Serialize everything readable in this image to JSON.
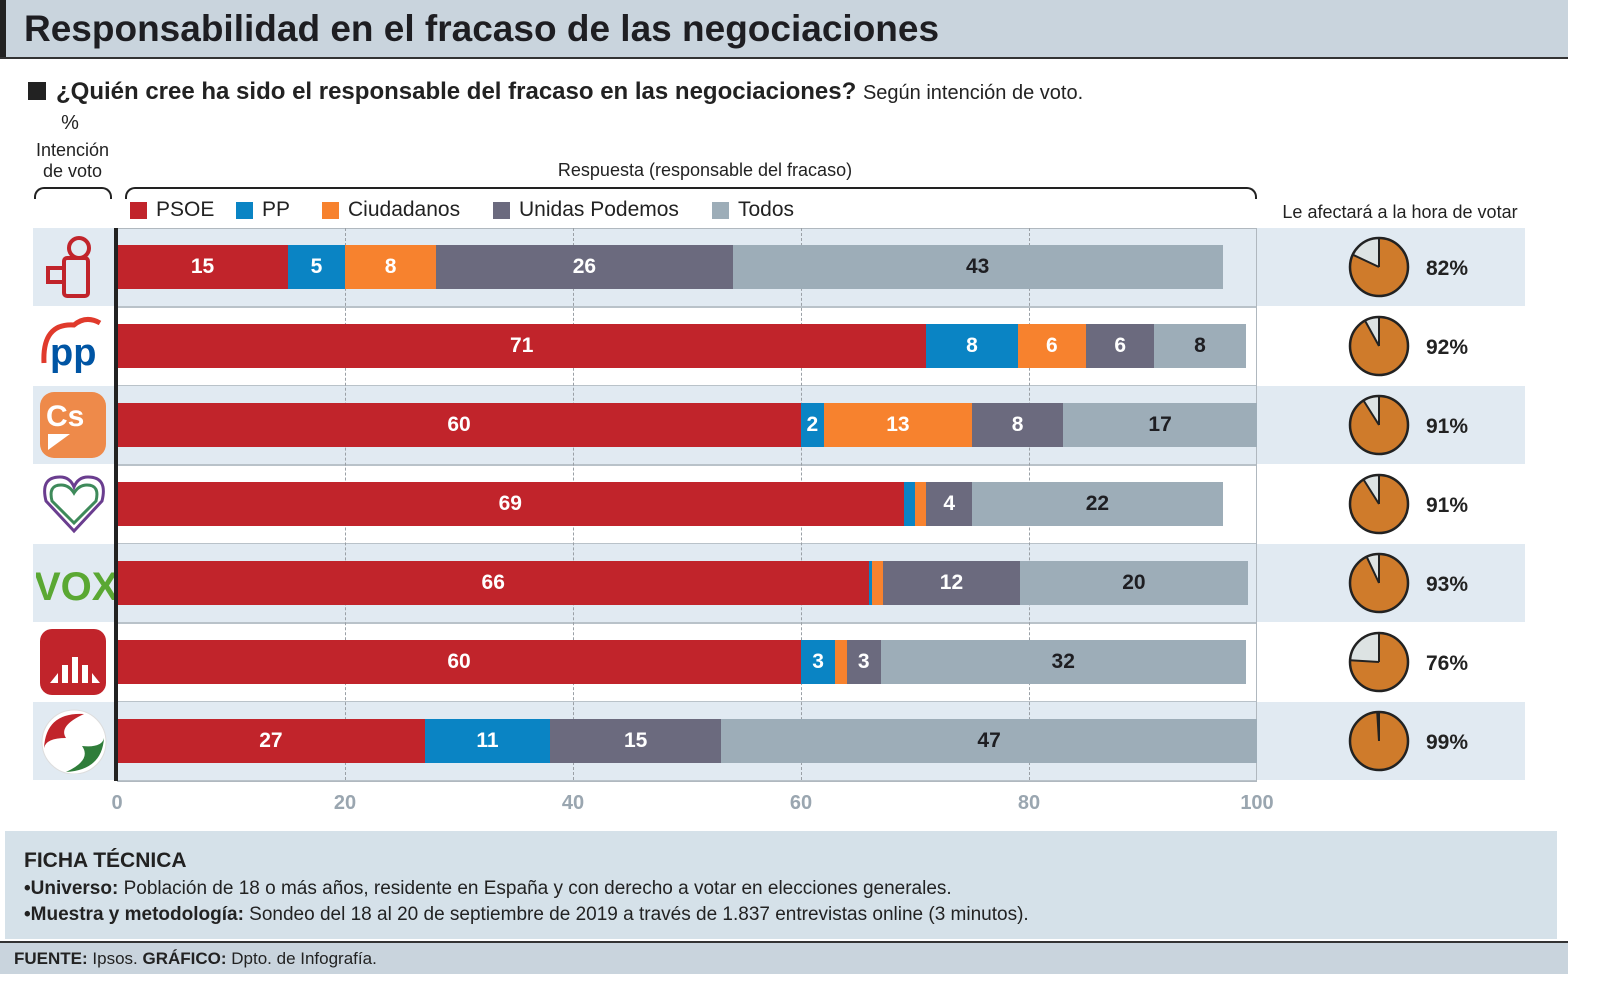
{
  "title": "Responsabilidad en el fracaso de las negociaciones",
  "question": "¿Quién cree ha sido el responsable del fracaso en las negociaciones?",
  "question_sub": "Según intención de voto.",
  "left_header": {
    "pct": "%",
    "line1": "Intención",
    "line2": "de voto"
  },
  "center_header": "Respuesta (responsable del fracaso)",
  "right_header": "Le afectará a la hora de votar",
  "colors": {
    "PSOE": "#c1242b",
    "PP": "#0a84c4",
    "Ciudadanos": "#f7822e",
    "Unidas Podemos": "#6b6a7e",
    "Todos": "#9dadb8",
    "pie": "#cf7b2b",
    "pie_rest": "#dde3e3"
  },
  "logos": [
    "PSOE rose-fist logo",
    "PP",
    "Cs",
    "Unidas Podemos heart logo",
    "VOX",
    "Más País logo",
    "PACMA/other logo"
  ],
  "chart_data": {
    "type": "bar",
    "orientation": "horizontal-stacked",
    "xlim": [
      0,
      100
    ],
    "xticks": [
      0,
      20,
      40,
      60,
      80,
      100
    ],
    "grid": true,
    "legend": "top",
    "categories": [
      "PSOE",
      "PP",
      "Ciudadanos",
      "Unidas Podemos",
      "VOX",
      "Más País",
      "Otro"
    ],
    "series": [
      {
        "name": "PSOE",
        "values": [
          15,
          71,
          60,
          69,
          66,
          60,
          27
        ]
      },
      {
        "name": "PP",
        "values": [
          5,
          8,
          2,
          1,
          0.2,
          3,
          11
        ]
      },
      {
        "name": "Ciudadanos",
        "values": [
          8,
          6,
          13,
          1,
          1,
          1,
          0
        ]
      },
      {
        "name": "Unidas Podemos",
        "values": [
          26,
          6,
          8,
          4,
          12,
          3,
          15
        ]
      },
      {
        "name": "Todos",
        "values": [
          43,
          8,
          17,
          22,
          20,
          32,
          47
        ]
      }
    ],
    "labels": [
      [
        "15",
        "5",
        "8",
        "26",
        "43"
      ],
      [
        "71",
        "8",
        "6",
        "6",
        "8"
      ],
      [
        "60",
        "2",
        "13",
        "8",
        "17"
      ],
      [
        "69",
        "",
        "",
        "4",
        "22"
      ],
      [
        "66",
        "",
        "",
        "12",
        "20"
      ],
      [
        "60",
        "3",
        "",
        "3",
        "32"
      ],
      [
        "27",
        "11",
        "",
        "15",
        "47"
      ]
    ],
    "affect_pie": {
      "values": [
        82,
        92,
        91,
        91,
        93,
        76,
        99
      ],
      "labels": [
        "82%",
        "92%",
        "91%",
        "91%",
        "93%",
        "76%",
        "99%"
      ]
    }
  },
  "ficha": {
    "heading": "FICHA TÉCNICA",
    "universo_label": "•Universo:",
    "universo": " Población de 18 o más años, residente en España y con derecho a votar en elecciones generales.",
    "muestra_label": "•Muestra y metodología:",
    "muestra": " Sondeo del 18 al 20 de septiembre de 2019 a través de 1.837 entrevistas online (3 minutos)."
  },
  "source": {
    "fuente_label": "FUENTE:",
    "fuente": " Ipsos. ",
    "grafico_label": "GRÁFICO:",
    "grafico": " Dpto. de Infografía."
  }
}
